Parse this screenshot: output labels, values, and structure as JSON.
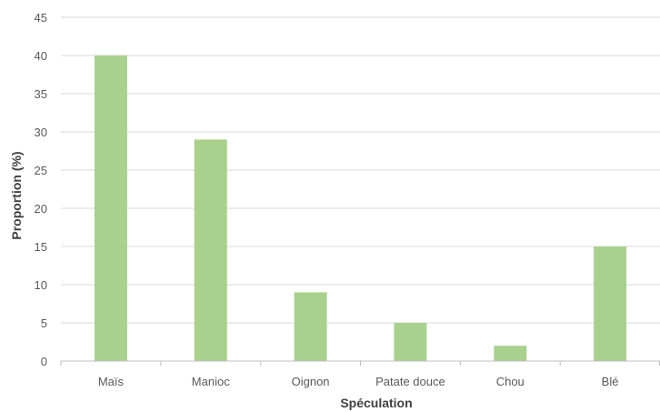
{
  "chart_data": {
    "type": "bar",
    "title": "",
    "xlabel": "Spéculation",
    "ylabel": "Proportion (%)",
    "categories": [
      "Maïs",
      "Manioc",
      "Oignon",
      "Patate douce",
      "Chou",
      "Blé"
    ],
    "values": [
      40,
      29,
      9,
      5,
      2,
      15
    ],
    "ylim": [
      0,
      45
    ],
    "yticks": [
      "0",
      "5",
      "10",
      "15",
      "20",
      "25",
      "30",
      "35",
      "40",
      "45"
    ],
    "grid": true,
    "legend": "none",
    "colors": {
      "bar": "#a9d18e",
      "grid": "#d9d9d9",
      "axis": "#bfbfbf"
    }
  }
}
